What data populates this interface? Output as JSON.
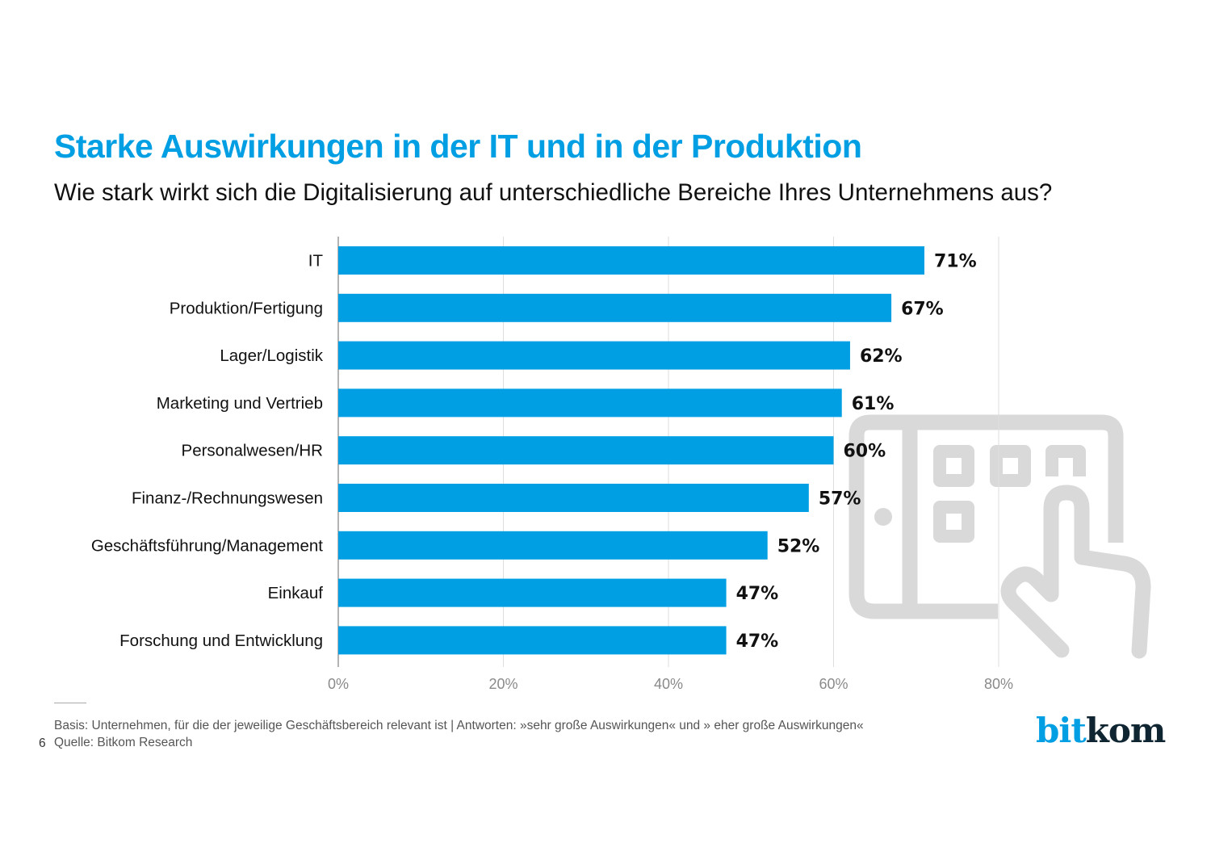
{
  "header": {
    "title": "Starke Auswirkungen in der IT und in der Produktion",
    "subtitle": "Wie stark wirkt sich die Digitalisierung auf unterschiedliche Bereiche Ihres Unternehmens aus?"
  },
  "chart_data": {
    "type": "bar",
    "orientation": "horizontal",
    "title": "Starke Auswirkungen in der IT und in der Produktion",
    "subtitle": "Wie stark wirkt sich die Digitalisierung auf unterschiedliche Bereiche Ihres Unternehmens aus?",
    "categories": [
      "IT",
      "Produktion/Fertigung",
      "Lager/Logistik",
      "Marketing und Vertrieb",
      "Personalwesen/HR",
      "Finanz-/Rechnungswesen",
      "Geschäftsführung/Management",
      "Einkauf",
      "Forschung und Entwicklung"
    ],
    "values": [
      71,
      67,
      62,
      61,
      60,
      57,
      52,
      47,
      47
    ],
    "value_labels": [
      "71%",
      "67%",
      "62%",
      "61%",
      "60%",
      "57%",
      "52%",
      "47%",
      "47%"
    ],
    "xlabel": "",
    "ylabel": "",
    "xlim": [
      0,
      80
    ],
    "xticks": [
      0,
      20,
      40,
      60,
      80
    ],
    "xtick_labels": [
      "0%",
      "20%",
      "40%",
      "60%",
      "80%"
    ],
    "grid": true,
    "legend": "none",
    "bar_color": "#009fe3"
  },
  "footer": {
    "basis": "Basis: Unternehmen, für die der jeweilige Geschäftsbereich relevant ist | Antworten: »sehr große Auswirkungen« und » eher große Auswirkungen«",
    "source": "Quelle: Bitkom Research",
    "page_number": "6"
  },
  "logo": {
    "part1": "bit",
    "part2": "kom"
  },
  "decoration": {
    "icon": "tablet-touch-icon"
  }
}
